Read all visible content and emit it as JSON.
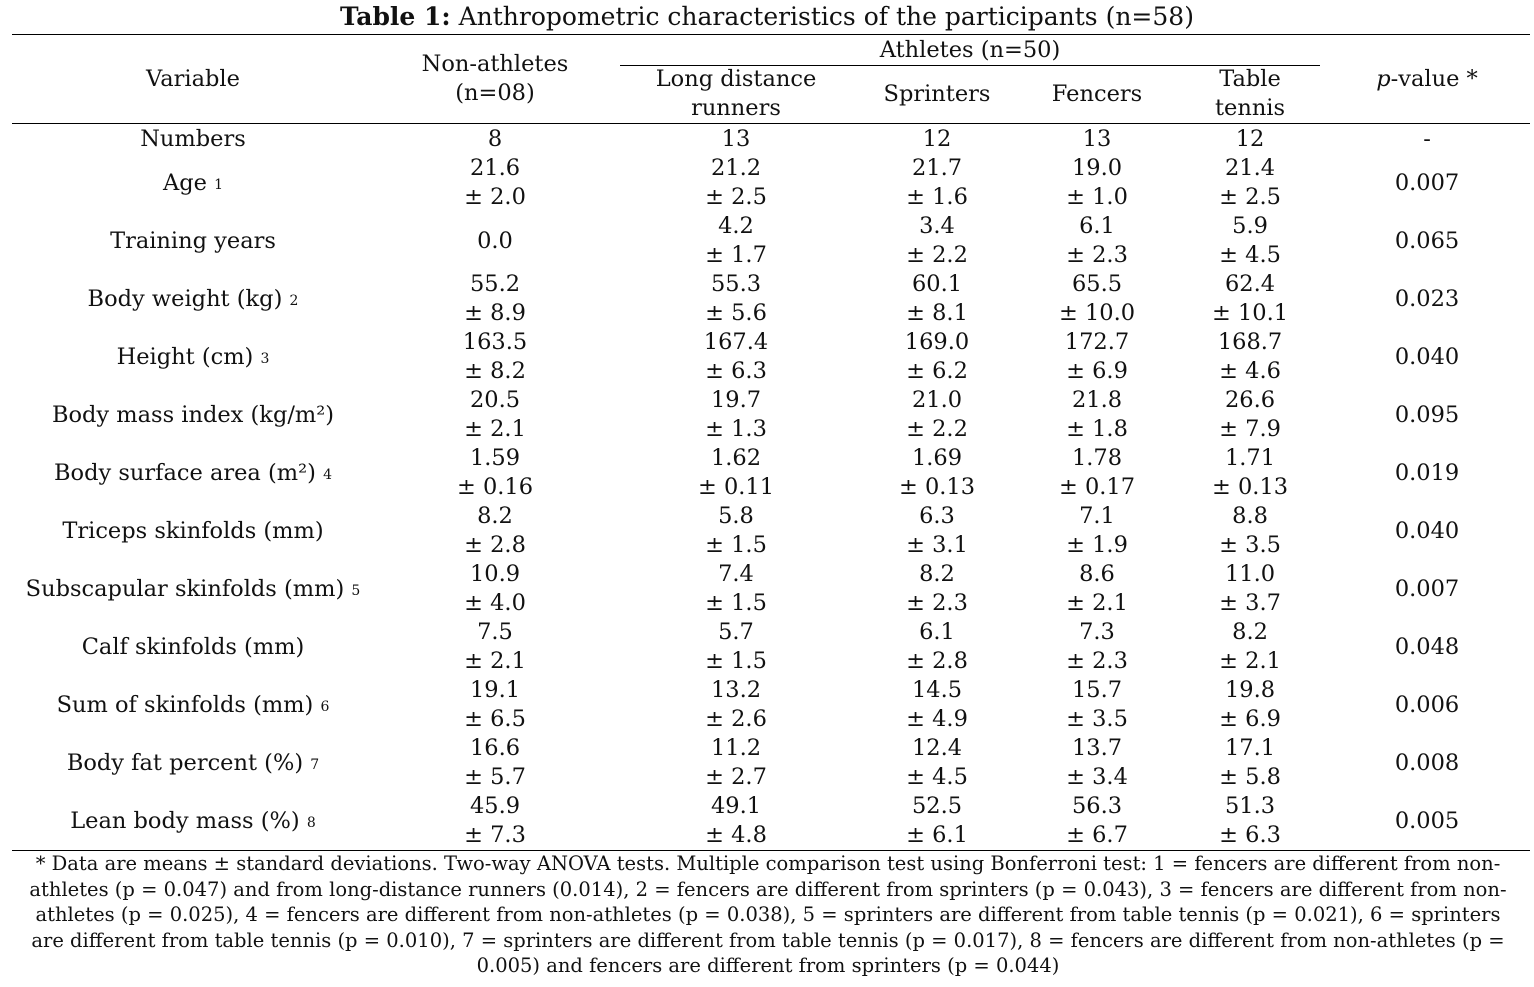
{
  "title": {
    "bold": "Table 1:",
    "rest": " Anthropometric characteristics of the participants (n=58)"
  },
  "header": {
    "variable": "Variable",
    "nonathletes_line1": "Non-athletes",
    "nonathletes_line2": "(n=08)",
    "athletes_group": "Athletes (n=50)",
    "col_ldr_line1": "Long distance",
    "col_ldr_line2": "runners",
    "col_sprinters": "Sprinters",
    "col_fencers": "Fencers",
    "col_tt_line1": "Table",
    "col_tt_line2": "tennis",
    "pvalue_italic": "p",
    "pvalue_rest": "-value *"
  },
  "numbers_row": {
    "label": "Numbers",
    "values": [
      "8",
      "13",
      "12",
      "13",
      "12"
    ],
    "p": "-"
  },
  "rows": [
    {
      "label": "Age",
      "sup": "1",
      "means": [
        "21.6",
        "21.2",
        "21.7",
        "19.0",
        "21.4"
      ],
      "sds": [
        "± 2.0",
        "± 2.5",
        "± 1.6",
        "± 1.0",
        "± 2.5"
      ],
      "p": "0.007"
    },
    {
      "label": "Training years",
      "sup": "",
      "means": [
        "0.0",
        "4.2",
        "3.4",
        "6.1",
        "5.9"
      ],
      "sds": [
        "",
        "± 1.7",
        "± 2.2",
        "± 2.3",
        "± 4.5"
      ],
      "p": "0.065"
    },
    {
      "label": "Body weight (kg)",
      "sup": "2",
      "means": [
        "55.2",
        "55.3",
        "60.1",
        "65.5",
        "62.4"
      ],
      "sds": [
        "± 8.9",
        "± 5.6",
        "± 8.1",
        "± 10.0",
        "± 10.1"
      ],
      "p": "0.023"
    },
    {
      "label": "Height (cm)",
      "sup": "3",
      "means": [
        "163.5",
        "167.4",
        "169.0",
        "172.7",
        "168.7"
      ],
      "sds": [
        "± 8.2",
        "± 6.3",
        "± 6.2",
        "± 6.9",
        "± 4.6"
      ],
      "p": "0.040"
    },
    {
      "label": "Body mass index (kg/m²)",
      "sup": "",
      "means": [
        "20.5",
        "19.7",
        "21.0",
        "21.8",
        "26.6"
      ],
      "sds": [
        "± 2.1",
        "± 1.3",
        "± 2.2",
        "± 1.8",
        "± 7.9"
      ],
      "p": "0.095"
    },
    {
      "label": "Body surface area (m²)",
      "sup": "4",
      "means": [
        "1.59",
        "1.62",
        "1.69",
        "1.78",
        "1.71"
      ],
      "sds": [
        "± 0.16",
        "± 0.11",
        "± 0.13",
        "± 0.17",
        "± 0.13"
      ],
      "p": "0.019"
    },
    {
      "label": "Triceps skinfolds (mm)",
      "sup": "",
      "means": [
        "8.2",
        "5.8",
        "6.3",
        "7.1",
        "8.8"
      ],
      "sds": [
        "± 2.8",
        "± 1.5",
        "± 3.1",
        "± 1.9",
        "± 3.5"
      ],
      "p": "0.040"
    },
    {
      "label": "Subscapular skinfolds (mm)",
      "sup": "5",
      "means": [
        "10.9",
        "7.4",
        "8.2",
        "8.6",
        "11.0"
      ],
      "sds": [
        "± 4.0",
        "± 1.5",
        "± 2.3",
        "± 2.1",
        "± 3.7"
      ],
      "p": "0.007"
    },
    {
      "label": "Calf skinfolds (mm)",
      "sup": "",
      "means": [
        "7.5",
        "5.7",
        "6.1",
        "7.3",
        "8.2"
      ],
      "sds": [
        "± 2.1",
        "± 1.5",
        "± 2.8",
        "± 2.3",
        "± 2.1"
      ],
      "p": "0.048"
    },
    {
      "label": "Sum of skinfolds (mm)",
      "sup": "6",
      "means": [
        "19.1",
        "13.2",
        "14.5",
        "15.7",
        "19.8"
      ],
      "sds": [
        "± 6.5",
        "± 2.6",
        "± 4.9",
        "± 3.5",
        "± 6.9"
      ],
      "p": "0.006"
    },
    {
      "label": "Body fat percent (%)",
      "sup": "7",
      "means": [
        "16.6",
        "11.2",
        "12.4",
        "13.7",
        "17.1"
      ],
      "sds": [
        "± 5.7",
        "± 2.7",
        "± 4.5",
        "± 3.4",
        "± 5.8"
      ],
      "p": "0.008"
    },
    {
      "label": "Lean body mass (%)",
      "sup": "8",
      "means": [
        "45.9",
        "49.1",
        "52.5",
        "56.3",
        "51.3"
      ],
      "sds": [
        "± 7.3",
        "± 4.8",
        "± 6.1",
        "± 6.7",
        "± 6.3"
      ],
      "p": "0.005"
    }
  ],
  "footnote": "* Data are means ± standard deviations. Two-way ANOVA tests. Multiple comparison test using Bonferroni test: 1 = fencers are different from non-athletes (p = 0.047) and from long-distance runners (0.014), 2 = fencers are different from sprinters (p = 0.043), 3 = fencers are different from non-athletes (p = 0.025), 4 = fencers are different from non-athletes (p = 0.038), 5 = sprinters are different from table tennis (p = 0.021), 6 = sprinters are different from table tennis (p = 0.010), 7 = sprinters are different from table tennis (p = 0.017), 8 = fencers are different from non-athletes (p = 0.005) and fencers are different from sprinters (p = 0.044)"
}
